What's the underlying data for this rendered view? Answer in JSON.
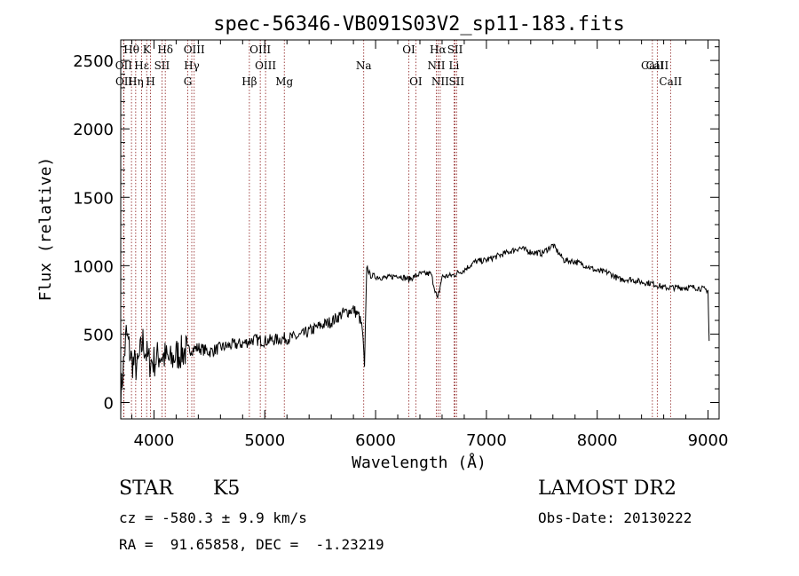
{
  "chart_data": {
    "type": "line",
    "title": "spec-56346-VB091S03V2_sp11-183.fits",
    "xlabel": "Wavelength (Å)",
    "ylabel": "Flux (relative)",
    "xlim": [
      3700,
      9100
    ],
    "ylim": [
      -120,
      2650
    ],
    "xticks": [
      4000,
      5000,
      6000,
      7000,
      8000,
      9000
    ],
    "yticks": [
      0,
      500,
      1000,
      1500,
      2000,
      2500
    ],
    "grid": false,
    "series": [
      {
        "color": "#000000",
        "x": [
          3700,
          3750,
          3800,
          3850,
          3900,
          3950,
          4000,
          4050,
          4100,
          4150,
          4200,
          4300,
          4400,
          4500,
          4600,
          4700,
          4800,
          4900,
          5000,
          5100,
          5200,
          5300,
          5400,
          5500,
          5600,
          5700,
          5800,
          5850,
          5880,
          5900,
          5920,
          5950,
          6000,
          6100,
          6200,
          6300,
          6400,
          6500,
          6560,
          6600,
          6700,
          6800,
          6900,
          7000,
          7100,
          7200,
          7300,
          7400,
          7500,
          7600,
          7700,
          7800,
          7900,
          8000,
          8100,
          8200,
          8300,
          8400,
          8500,
          8600,
          8700,
          8800,
          8900,
          9000,
          9010
        ],
        "y": [
          50,
          500,
          300,
          250,
          450,
          300,
          300,
          350,
          330,
          300,
          350,
          380,
          400,
          370,
          400,
          420,
          430,
          460,
          450,
          460,
          470,
          480,
          520,
          560,
          590,
          650,
          680,
          630,
          540,
          250,
          1000,
          930,
          920,
          910,
          930,
          900,
          940,
          940,
          750,
          920,
          930,
          970,
          1030,
          1040,
          1070,
          1100,
          1130,
          1100,
          1090,
          1150,
          1040,
          1030,
          1000,
          960,
          950,
          900,
          900,
          880,
          870,
          840,
          840,
          840,
          840,
          820,
          450
        ]
      }
    ],
    "spectral_lines": [
      {
        "label": "Hθ",
        "x": 3797
      },
      {
        "label": "K",
        "x": 3934
      },
      {
        "label": "Hδ",
        "x": 4102
      },
      {
        "label": "OIII",
        "x": 4363
      },
      {
        "label": "OIII",
        "x": 4959
      },
      {
        "label": "OII",
        "x": 3727
      },
      {
        "label": "Hε",
        "x": 3889
      },
      {
        "label": "SII",
        "x": 4072
      },
      {
        "label": "Hγ",
        "x": 4341
      },
      {
        "label": "OIII",
        "x": 5007
      },
      {
        "label": "Na",
        "x": 5893
      },
      {
        "label": "NII",
        "x": 6548
      },
      {
        "label": "Li",
        "x": 6708
      },
      {
        "label": "CaII",
        "x": 8542
      },
      {
        "label": "OII",
        "x": 3729
      },
      {
        "label": "Hη",
        "x": 3835
      },
      {
        "label": "H",
        "x": 3969
      },
      {
        "label": "G",
        "x": 4305
      },
      {
        "label": "Hβ",
        "x": 4861
      },
      {
        "label": "Mg",
        "x": 5176
      },
      {
        "label": "OI",
        "x": 6300
      },
      {
        "label": "Hα",
        "x": 6563
      },
      {
        "label": "SII",
        "x": 6717
      },
      {
        "label": "OI",
        "x": 6363
      },
      {
        "label": "NII",
        "x": 6583
      },
      {
        "label": "SII",
        "x": 6731
      },
      {
        "label": "CaII",
        "x": 8498
      },
      {
        "label": "CaII",
        "x": 8662
      }
    ]
  },
  "info": {
    "object_class": "STAR",
    "subclass": "K5",
    "survey": "LAMOST DR2",
    "redshift": "cz = -580.3 ± 9.9 km/s",
    "obs_date": "Obs-Date: 20130222",
    "coords": "RA =  91.65858, DEC =  -1.23219"
  }
}
